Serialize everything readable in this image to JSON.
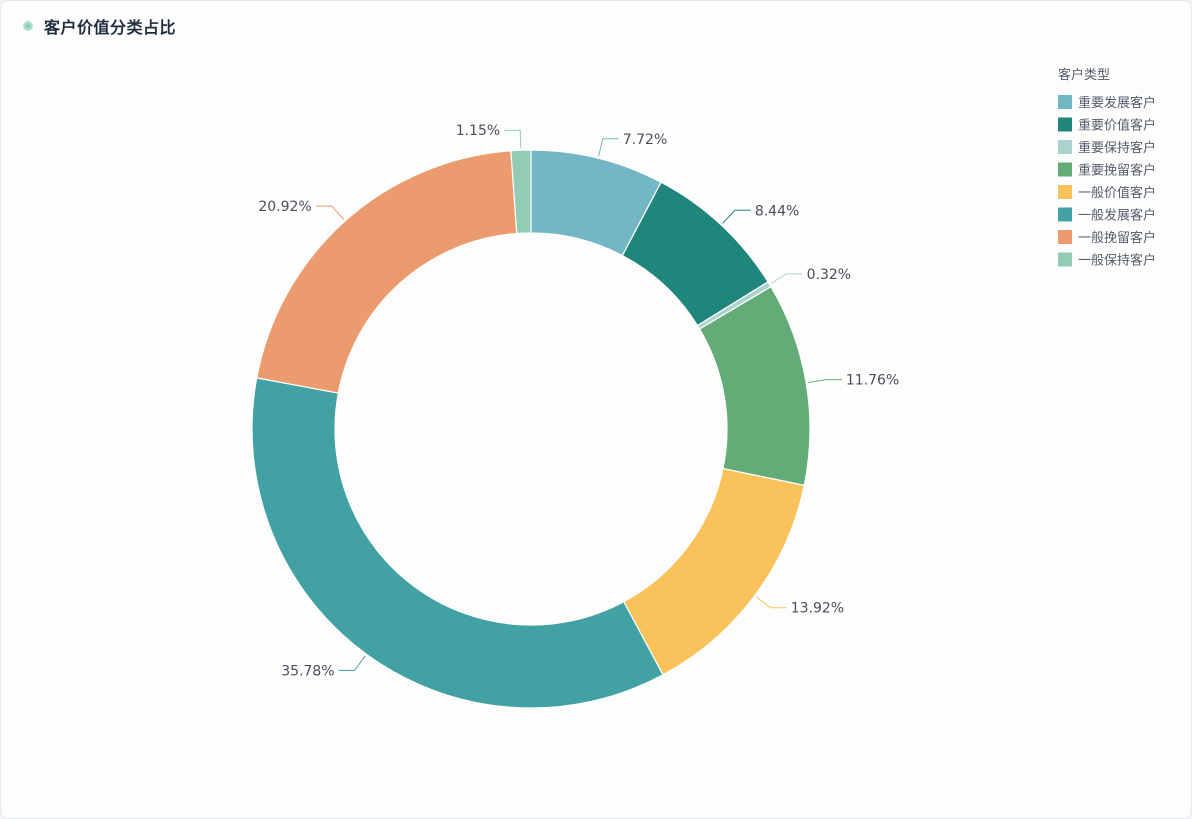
{
  "header": {
    "title": "客户价值分类占比"
  },
  "chart_data": {
    "type": "pie",
    "variant": "donut",
    "title": "客户价值分类占比",
    "legend_title": "客户类型",
    "legend_position": "top-right",
    "slices": [
      {
        "name": "重要发展客户",
        "value": 7.72,
        "label": "7.72%",
        "color": "#73b7c4"
      },
      {
        "name": "重要价值客户",
        "value": 8.44,
        "label": "8.44%",
        "color": "#20857a"
      },
      {
        "name": "重要保持客户",
        "value": 0.32,
        "label": "0.32%",
        "color": "#a9d3cc"
      },
      {
        "name": "重要挽留客户",
        "value": 11.76,
        "label": "11.76%",
        "color": "#63ac77"
      },
      {
        "name": "一般价值客户",
        "value": 13.92,
        "label": "13.92%",
        "color": "#f9c25a"
      },
      {
        "name": "一般发展客户",
        "value": 35.78,
        "label": "35.78%",
        "color": "#42a1a3"
      },
      {
        "name": "一般挽留客户",
        "value": 20.92,
        "label": "20.92%",
        "color": "#ec9b6e"
      },
      {
        "name": "一般保持客户",
        "value": 1.15,
        "label": "1.15%",
        "color": "#92ccb4"
      }
    ]
  }
}
